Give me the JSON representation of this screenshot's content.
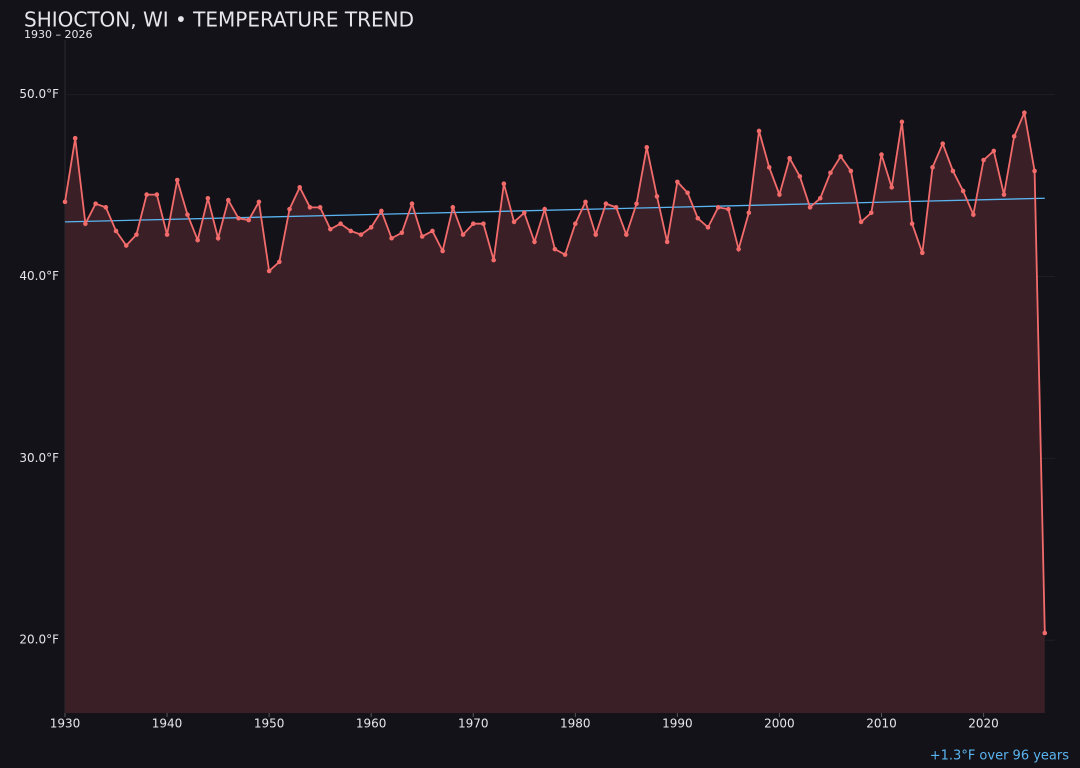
{
  "chart_data": {
    "type": "line",
    "title": "SHIOCTON, WI • TEMPERATURE TREND",
    "subtitle": "1930 – 2026",
    "annotation": "+1.3°F over 96 years",
    "x": [
      1930,
      1931,
      1932,
      1933,
      1934,
      1935,
      1936,
      1937,
      1938,
      1939,
      1940,
      1941,
      1942,
      1943,
      1944,
      1945,
      1946,
      1947,
      1948,
      1949,
      1950,
      1951,
      1952,
      1953,
      1954,
      1955,
      1956,
      1957,
      1958,
      1959,
      1960,
      1961,
      1962,
      1963,
      1964,
      1965,
      1966,
      1967,
      1968,
      1969,
      1970,
      1971,
      1972,
      1973,
      1974,
      1975,
      1976,
      1977,
      1978,
      1979,
      1980,
      1981,
      1982,
      1983,
      1984,
      1985,
      1986,
      1987,
      1988,
      1989,
      1990,
      1991,
      1992,
      1993,
      1994,
      1995,
      1996,
      1997,
      1998,
      1999,
      2000,
      2001,
      2002,
      2003,
      2004,
      2005,
      2006,
      2007,
      2008,
      2009,
      2010,
      2011,
      2012,
      2013,
      2014,
      2015,
      2016,
      2017,
      2018,
      2019,
      2020,
      2021,
      2022,
      2023,
      2024,
      2025,
      2026
    ],
    "series": [
      {
        "color": "#f26b6b",
        "area_color": "#3a1f27",
        "values": [
          44.1,
          47.6,
          42.9,
          44.0,
          43.8,
          42.5,
          41.7,
          42.3,
          44.5,
          44.5,
          42.3,
          45.3,
          43.4,
          42.0,
          44.3,
          42.1,
          44.2,
          43.2,
          43.1,
          44.1,
          40.3,
          40.8,
          43.7,
          44.9,
          43.8,
          43.8,
          42.6,
          42.9,
          42.5,
          42.3,
          42.7,
          43.6,
          42.1,
          42.4,
          44.0,
          42.2,
          42.5,
          41.4,
          43.8,
          42.3,
          42.9,
          42.9,
          40.9,
          45.1,
          43.0,
          43.5,
          41.9,
          43.7,
          41.5,
          41.2,
          42.9,
          44.1,
          42.3,
          44.0,
          43.8,
          42.3,
          44.0,
          47.1,
          44.4,
          41.9,
          45.2,
          44.6,
          43.2,
          42.7,
          43.8,
          43.7,
          41.5,
          43.5,
          48.0,
          46.0,
          44.5,
          46.5,
          45.5,
          43.8,
          44.3,
          45.7,
          46.6,
          45.8,
          43.0,
          43.5,
          46.7,
          44.9,
          48.5,
          42.9,
          41.3,
          46.0,
          47.3,
          45.8,
          44.7,
          43.4,
          46.4,
          46.9,
          44.5,
          47.7,
          49.0,
          45.8,
          20.4
        ]
      }
    ],
    "trend": {
      "color": "#5ab4f0",
      "x": [
        1930,
        2026
      ],
      "values": [
        43.0,
        44.3
      ]
    },
    "xlim": [
      1930,
      2027
    ],
    "ylim": [
      16,
      53
    ],
    "xticks": [
      1930,
      1940,
      1950,
      1960,
      1970,
      1980,
      1990,
      2000,
      2010,
      2020
    ],
    "yticks": [
      {
        "value": 20,
        "label": "20.0°F"
      },
      {
        "value": 30,
        "label": "30.0°F"
      },
      {
        "value": 40,
        "label": "40.0°F"
      },
      {
        "value": 50,
        "label": "50.0°F"
      }
    ],
    "grid": true
  }
}
